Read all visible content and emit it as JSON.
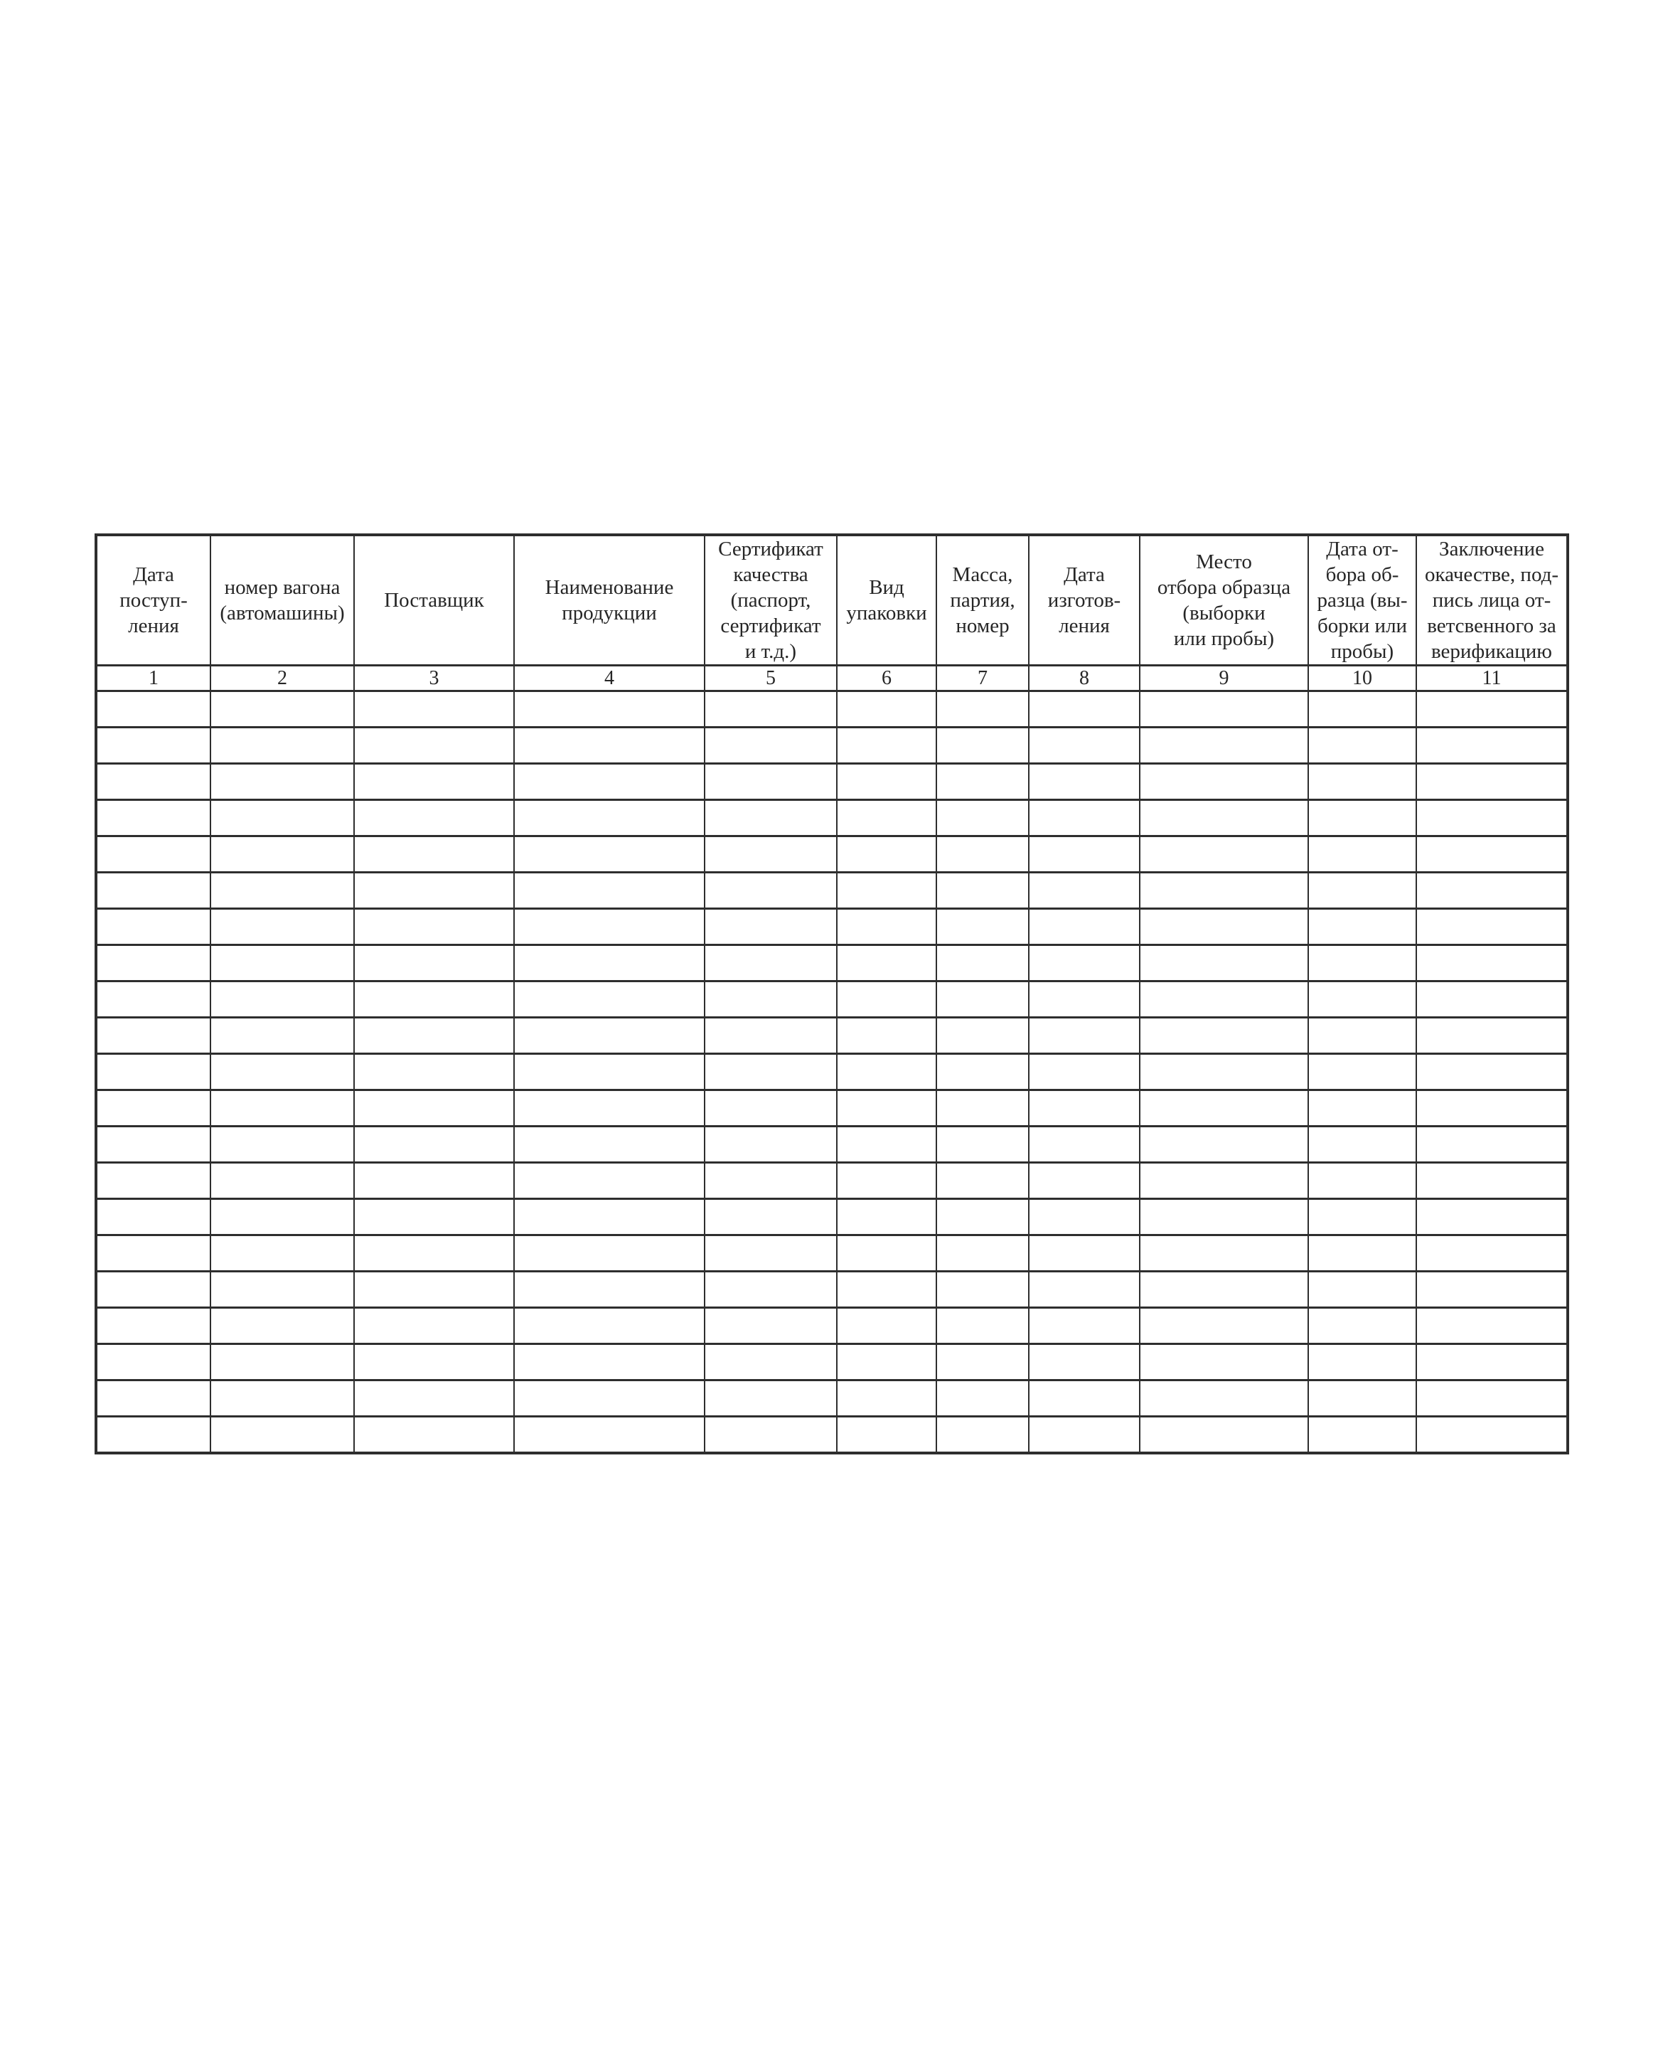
{
  "colors": {
    "border": "#2e2e2e",
    "text": "#262626",
    "page_background": "#ffffff"
  },
  "table": {
    "empty_row_count": 21,
    "columns": [
      {
        "name": "receipt-date",
        "label": "Дата\nпоступ-\nления",
        "number": "1"
      },
      {
        "name": "wagon-number",
        "label": "номер вагона\n(автомашины)",
        "number": "2"
      },
      {
        "name": "supplier",
        "label": "Поставщик",
        "number": "3"
      },
      {
        "name": "product-name",
        "label": "Наименование\nпродукции",
        "number": "4"
      },
      {
        "name": "quality-certificate",
        "label": "Сертификат\nкачества\n(паспорт,\nсертификат\nи т.д.)",
        "number": "5"
      },
      {
        "name": "packaging-type",
        "label": "Вид\nупаковки",
        "number": "6"
      },
      {
        "name": "mass-batch-number",
        "label": "Масса,\nпартия,\nномер",
        "number": "7"
      },
      {
        "name": "manufacture-date",
        "label": "Дата\nизготов-\nления",
        "number": "8"
      },
      {
        "name": "sampling-place",
        "label": "Место\nотбора образца\n(выборки\nили пробы)",
        "number": "9"
      },
      {
        "name": "sampling-date",
        "label": "Дата от-\nбора об-\nразца (вы-\nборки или\nпробы)",
        "number": "10"
      },
      {
        "name": "quality-conclusion",
        "label": "Заключение\nокачестве, под-\nпись лица от-\nветсвенного за\nверификацию",
        "number": "11"
      }
    ]
  }
}
